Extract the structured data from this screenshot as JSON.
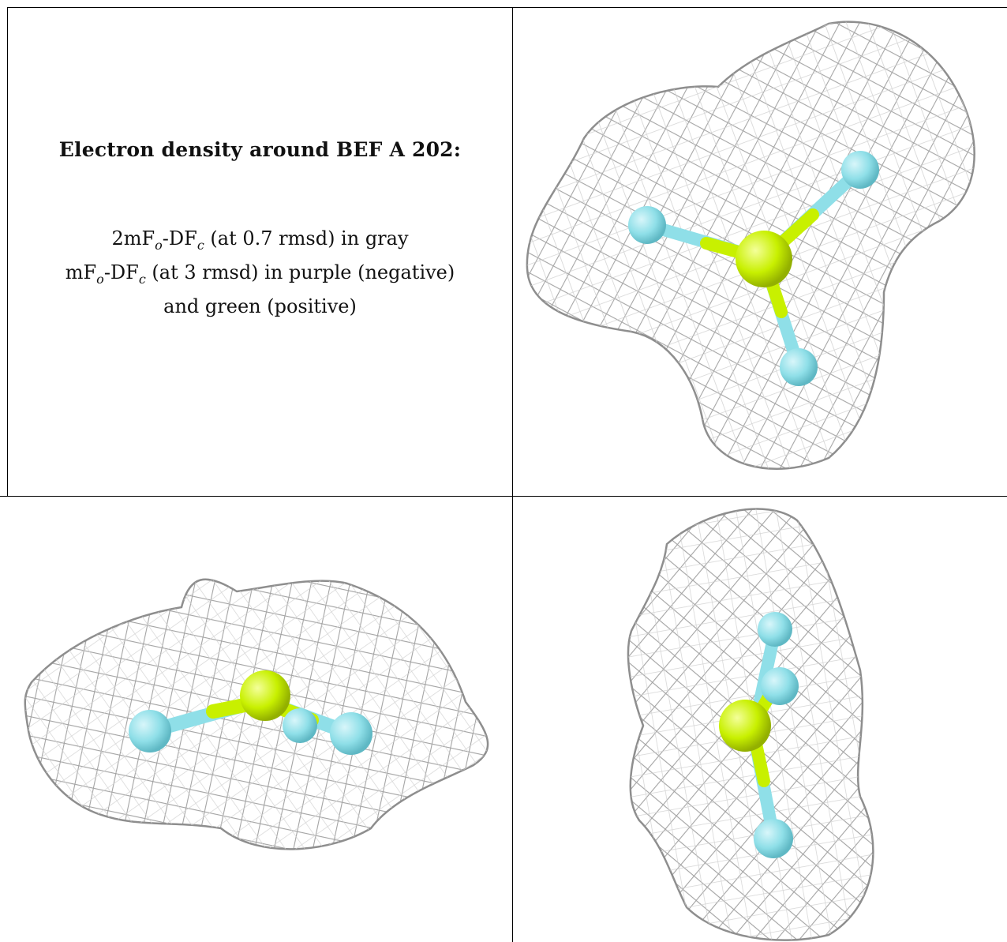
{
  "caption": {
    "title": "Electron density around BEF A 202:",
    "line1": {
      "pre": "2mF",
      "sub1": "o",
      "mid": "-DF",
      "sub2": "c",
      "post": " (at 0.7 rmsd) in gray"
    },
    "line2": {
      "pre": "mF",
      "sub1": "o",
      "mid": "-DF",
      "sub2": "c",
      "post": " (at 3 rmsd) in purple (negative)"
    },
    "line3": "and green (positive)"
  },
  "colors": {
    "mesh": "#9a9a9a",
    "mesh_light": "#c9c9c9",
    "beryllium": "#c8f000",
    "fluorine": "#8fdfe8",
    "grid": "#000000"
  },
  "panels": [
    {
      "view": "top",
      "molecule": "BeF3"
    },
    {
      "view": "side"
    },
    {
      "view": "end-on"
    }
  ]
}
